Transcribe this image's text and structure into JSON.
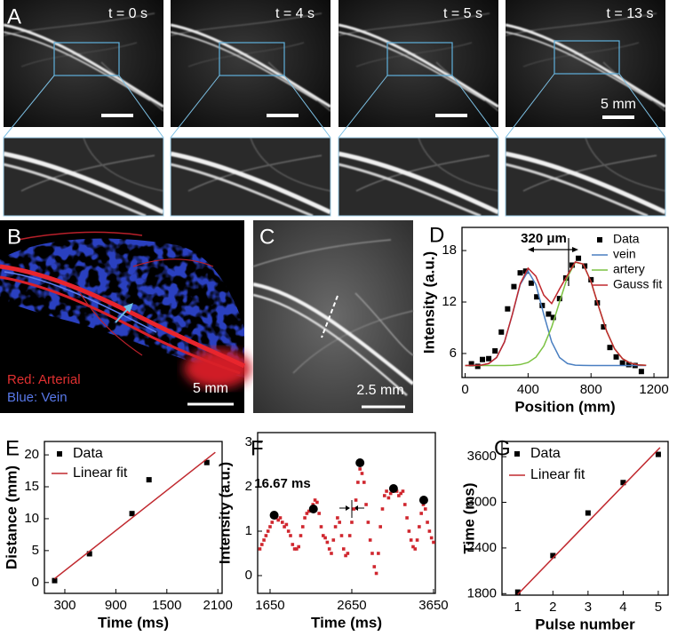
{
  "panel_A": {
    "label": "A",
    "frames": [
      "t = 0 s",
      "t = 4 s",
      "t = 5 s",
      "t = 13 s"
    ],
    "scale_bar": "5 mm"
  },
  "panel_B": {
    "label": "B",
    "legend": [
      "Red: Arterial",
      "Blue: Vein"
    ],
    "scale_bar": "5 mm"
  },
  "panel_C": {
    "label": "C",
    "scale_bar": "2.5 mm"
  },
  "chart_data": [
    {
      "panel_label": "D",
      "type": "scatter",
      "annotation": "320 μm",
      "x_label": "Position (mm)",
      "y_label": "Intensity (a.u.)",
      "xlim": [
        -20,
        1290
      ],
      "xticks": [
        0,
        400,
        800,
        1200
      ],
      "ylim": [
        3.2,
        20.7
      ],
      "yticks": [
        6,
        12,
        18
      ],
      "legend": "upper right",
      "series": [
        {
          "name": "Data",
          "mode": "markers",
          "marker": "square",
          "color": "#000000",
          "x": [
            40,
            80,
            110,
            150,
            190,
            230,
            270,
            310,
            350,
            385,
            420,
            455,
            490,
            530,
            560,
            600,
            640,
            680,
            720,
            760,
            800,
            840,
            880,
            920,
            960,
            1000,
            1040,
            1080,
            1120
          ],
          "values": [
            4.8,
            4.5,
            5.3,
            5.4,
            6.3,
            8.5,
            11.2,
            13.8,
            15.4,
            15.6,
            14.2,
            12.6,
            11.6,
            10.6,
            10.2,
            12.4,
            14.8,
            16.3,
            17.1,
            16.2,
            14.6,
            11.9,
            9.1,
            6.7,
            5.6,
            4.9,
            4.7,
            4.6,
            3.9
          ]
        },
        {
          "name": "vein",
          "mode": "lines",
          "color": "#4a7fc1",
          "x": [
            0,
            50,
            100,
            150,
            200,
            250,
            300,
            350,
            400,
            450,
            500,
            550,
            600,
            650,
            700,
            750,
            800,
            850,
            900,
            950,
            1000,
            1050,
            1100,
            1150
          ],
          "values": [
            4.6,
            4.61,
            4.64,
            4.83,
            5.53,
            7.34,
            10.53,
            14.03,
            15.6,
            14.03,
            10.53,
            7.34,
            5.53,
            4.83,
            4.64,
            4.61,
            4.6,
            4.6,
            4.6,
            4.6,
            4.6,
            4.6,
            4.6,
            4.6
          ]
        },
        {
          "name": "artery",
          "mode": "lines",
          "color": "#7cc242",
          "x": [
            0,
            50,
            100,
            150,
            200,
            250,
            300,
            350,
            400,
            450,
            500,
            550,
            600,
            650,
            700,
            750,
            800,
            850,
            900,
            950,
            1000,
            1050,
            1100,
            1150
          ],
          "values": [
            4.6,
            4.6,
            4.6,
            4.6,
            4.6,
            4.6,
            4.63,
            4.71,
            4.95,
            5.57,
            6.87,
            9.08,
            12.0,
            14.89,
            16.63,
            16.42,
            14.37,
            11.38,
            8.56,
            6.54,
            5.4,
            4.88,
            4.68,
            4.62
          ]
        },
        {
          "name": "Gauss  fit",
          "mode": "lines",
          "color": "#c0282e",
          "x": [
            0,
            50,
            100,
            150,
            200,
            250,
            300,
            350,
            400,
            450,
            500,
            550,
            600,
            650,
            700,
            750,
            800,
            850,
            900,
            950,
            1000,
            1050,
            1100,
            1150
          ],
          "values": [
            4.6,
            4.61,
            4.64,
            4.83,
            5.53,
            7.34,
            10.56,
            14.14,
            15.95,
            15.0,
            12.8,
            11.82,
            13.53,
            15.12,
            16.67,
            16.43,
            14.37,
            11.38,
            8.56,
            6.54,
            5.4,
            4.88,
            4.68,
            4.62
          ]
        }
      ]
    },
    {
      "panel_label": "E",
      "type": "scatter",
      "x_label": "Time (ms)",
      "y_label": "Distance (mm)",
      "xlim": [
        60,
        2150
      ],
      "xticks": [
        300,
        900,
        1500,
        2100
      ],
      "ylim": [
        -1.7,
        22.1
      ],
      "yticks": [
        0,
        5,
        10,
        15,
        20
      ],
      "legend": "upper left",
      "series": [
        {
          "name": "Data",
          "mode": "markers",
          "marker": "square",
          "color": "#000000",
          "x": [
            180,
            590,
            1090,
            1290,
            1970
          ],
          "values": [
            0.3,
            4.5,
            10.8,
            16.1,
            18.8
          ]
        },
        {
          "name": "Linear fit",
          "mode": "lines",
          "color": "#c0282e",
          "x": [
            180,
            2070
          ],
          "values": [
            0.6,
            20.4
          ]
        }
      ]
    },
    {
      "panel_label": "F",
      "type": "scatter",
      "annotation": "16.67 ms",
      "x_label": "Time (ms)",
      "y_label": "Intensity (a.u.)",
      "xlim": [
        1498,
        3672
      ],
      "xticks": [
        1650,
        2650,
        3650
      ],
      "ylim": [
        -0.4,
        3.22
      ],
      "yticks": [
        0,
        1,
        2,
        3
      ],
      "series": [
        {
          "mode": "markers",
          "marker": "dot",
          "color": "#d0262e",
          "x": [
            1525,
            1550,
            1575,
            1600,
            1625,
            1650,
            1675,
            1700,
            1725,
            1750,
            1775,
            1800,
            1825,
            1850,
            1875,
            1900,
            1925,
            1950,
            1975,
            2000,
            2025,
            2050,
            2075,
            2100,
            2125,
            2150,
            2175,
            2200,
            2225,
            2250,
            2275,
            2300,
            2325,
            2350,
            2375,
            2400,
            2425,
            2450,
            2475,
            2500,
            2525,
            2550,
            2575,
            2600,
            2625,
            2650,
            2675,
            2700,
            2725,
            2750,
            2775,
            2800,
            2825,
            2850,
            2875,
            2900,
            2925,
            2950,
            2975,
            3000,
            3025,
            3050,
            3075,
            3100,
            3125,
            3150,
            3175,
            3200,
            3225,
            3250,
            3275,
            3300,
            3325,
            3350,
            3375,
            3400,
            3425,
            3450,
            3475,
            3500,
            3525,
            3550,
            3575,
            3600,
            3625,
            3650
          ],
          "values": [
            0.6,
            0.7,
            0.8,
            0.9,
            1.0,
            1.1,
            1.2,
            1.35,
            1.3,
            1.25,
            1.3,
            1.2,
            1.1,
            1.15,
            1.0,
            0.9,
            0.7,
            0.6,
            0.6,
            0.65,
            0.9,
            1.1,
            1.3,
            1.4,
            1.45,
            1.5,
            1.6,
            1.7,
            1.65,
            1.4,
            1.1,
            0.9,
            0.85,
            0.75,
            0.6,
            0.5,
            0.8,
            1.1,
            1.3,
            1.2,
            0.9,
            0.6,
            0.45,
            0.5,
            0.9,
            1.2,
            1.5,
            1.7,
            2.1,
            2.4,
            2.3,
            2.1,
            1.6,
            1.2,
            0.8,
            0.5,
            0.2,
            0.05,
            0.5,
            1.1,
            1.5,
            1.8,
            1.9,
            1.75,
            1.85,
            1.9,
            1.95,
            1.9,
            1.8,
            1.85,
            1.9,
            1.6,
            1.3,
            1.0,
            0.8,
            0.65,
            0.6,
            0.8,
            1.1,
            1.4,
            1.6,
            1.5,
            1.2,
            1.0,
            0.85,
            0.75
          ]
        },
        {
          "mode": "markers",
          "marker": "circle",
          "color": "#000000",
          "x": [
            1700,
            2180,
            2750,
            3160,
            3530
          ],
          "values": [
            1.36,
            1.5,
            2.54,
            1.96,
            1.7
          ]
        }
      ]
    },
    {
      "panel_label": "G",
      "type": "scatter",
      "x_label": "Pulse number",
      "y_label": "Time (ms)",
      "xlim": [
        0.55,
        5.28
      ],
      "xticks": [
        1,
        2,
        3,
        4,
        5
      ],
      "ylim": [
        1780,
        3800
      ],
      "yticks": [
        1800,
        2400,
        3000,
        3600
      ],
      "legend": "upper left",
      "series": [
        {
          "name": "Data",
          "mode": "markers",
          "marker": "square",
          "color": "#000000",
          "x": [
            1,
            2,
            3,
            4,
            5
          ],
          "values": [
            1820,
            2300,
            2860,
            3260,
            3630
          ]
        },
        {
          "name": "Linear fit",
          "mode": "lines",
          "color": "#c0282e",
          "x": [
            1,
            5.05
          ],
          "values": [
            1790,
            3720
          ]
        }
      ]
    }
  ]
}
